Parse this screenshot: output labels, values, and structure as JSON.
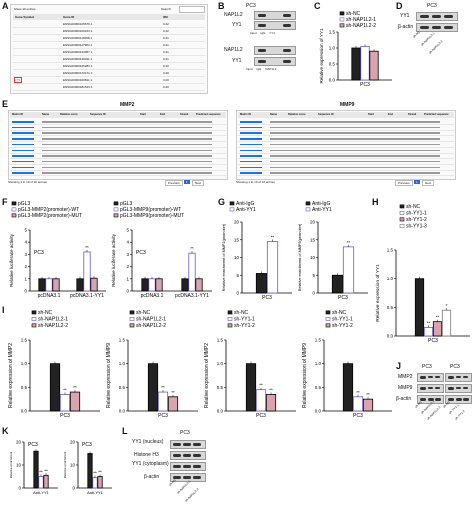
{
  "panelA": {
    "letter": "A",
    "show_text": "Show 10 entries",
    "search_label": "Search:",
    "headers": [
      "Gene Symbol",
      "Gene ID",
      "IRC"
    ],
    "rows": [
      {
        "symbol": "",
        "id": "ENSG00000105676.1",
        "irc": "0.22"
      },
      {
        "symbol": "",
        "id": "ENSG00000106153.1",
        "irc": "0.22"
      },
      {
        "symbol": "",
        "id": "ENSG00000116098.1",
        "irc": "0.21"
      },
      {
        "symbol": "",
        "id": "ENSG00000117983.1",
        "irc": "0.21"
      },
      {
        "symbol": "",
        "id": "ENSG00000134057.1",
        "irc": "0.21"
      },
      {
        "symbol": "",
        "id": "ENSG00000149311.1",
        "irc": "0.21"
      },
      {
        "symbol": "",
        "id": "ENSG00000165283.1",
        "irc": "0.20"
      },
      {
        "symbol": "",
        "id": "ENSG00000172171.1",
        "irc": "0.20"
      },
      {
        "symbol": "YY1",
        "id": "ENSG00000100811.1",
        "irc": "0.20"
      },
      {
        "symbol": "",
        "id": "ENSG00000181513.1",
        "irc": "0.20"
      }
    ],
    "highlight_color": "#e53935"
  },
  "panelB": {
    "letter": "B",
    "cell": "PC3",
    "ip1": {
      "probe": "NAP1L2",
      "blot": "YY1",
      "lanes": [
        "Input",
        "IgG",
        "YY1"
      ]
    },
    "ip2": {
      "probe": "NAP1L2",
      "blot": "YY1",
      "lanes": [
        "Input",
        "IgG",
        "NAP1L2"
      ]
    }
  },
  "panelC": {
    "letter": "C"
  },
  "panelD": {
    "letter": "D",
    "cell": "PC3",
    "rows": [
      "YY1",
      "β-actin"
    ],
    "lanes": [
      "sh-NC",
      "sh-NAP1L2-1",
      "sh-NAP1L2-2"
    ]
  },
  "panelE": {
    "letter": "E",
    "tables": [
      {
        "title": "MMP2",
        "headers": [
          "Matrix ID",
          "Name",
          "Relative score",
          "Sequence ID",
          "Start",
          "End",
          "Strand",
          "Predicted sequence"
        ],
        "footer": "Showing 1 to 10 of 10 entries"
      },
      {
        "title": "MMP9",
        "headers": [
          "Matrix ID",
          "Name",
          "Relative score",
          "Sequence ID",
          "Start",
          "End",
          "Strand",
          "Predicted sequence"
        ],
        "footer": "Showing 1 to 10 of 10 entries"
      }
    ],
    "pager": [
      "Previous",
      "1",
      "Next"
    ]
  },
  "panelF": {
    "letter": "F"
  },
  "panelG": {
    "letter": "G"
  },
  "panelH": {
    "letter": "H"
  },
  "panelI": {
    "letter": "I"
  },
  "panelJ": {
    "letter": "J",
    "cells": [
      "PC3",
      "PC3"
    ],
    "rows": [
      "MMP2",
      "MMP9",
      "β-actin"
    ],
    "lanes_left": [
      "sh-NC",
      "sh-NAP1L2-1",
      "sh-NAP1L2-2"
    ],
    "lanes_right": [
      "sh-NC",
      "sh-YY1-1",
      "sh-YY1-2"
    ]
  },
  "panelK": {
    "letter": "K"
  },
  "panelL": {
    "letter": "L",
    "cell": "PC3",
    "rows": [
      "YY1 (nucleus)",
      "Histone H3",
      "YY1 (cytoplasm)",
      "β-actin"
    ],
    "lanes": [
      "sh-NC",
      "sh-NAP1L2-1",
      "sh-NAP1L2-2"
    ]
  },
  "colors": {
    "black": "#222222",
    "purple": "#6a5acd",
    "pink": "#d9a3b0",
    "gray": "#777777"
  },
  "chart_data": [
    {
      "id": "C",
      "type": "bar",
      "categories": [
        "PC3"
      ],
      "xlabel": "PC3",
      "ylabel": "Relative expression of YY1",
      "ylim": [
        0,
        1.5
      ],
      "yticks": [
        "0.0",
        "0.5",
        "1.0",
        "1.5"
      ],
      "legend": [
        "sh-NC",
        "sh-NAP1L2-1",
        "sh-NAP1L2-2"
      ],
      "series": [
        {
          "name": "sh-NC",
          "values": [
            1.0
          ]
        },
        {
          "name": "sh-NAP1L2-1",
          "values": [
            1.05
          ]
        },
        {
          "name": "sh-NAP1L2-2",
          "values": [
            0.9
          ]
        }
      ],
      "sig": [
        "",
        "",
        ""
      ]
    },
    {
      "id": "F1",
      "type": "bar",
      "categories": [
        "pcDNA3.1",
        "pcDNA3.1-YY1"
      ],
      "xlabel": "",
      "ylabel": "Relative luciferase activity",
      "ylim": [
        0,
        5
      ],
      "yticks": [
        "0",
        "1",
        "2",
        "3",
        "4",
        "5"
      ],
      "title": "PC3",
      "legend": [
        "pGL3",
        "pGL3-MMP2(promoter)-WT",
        "pGL3-MMP2(promoter)-MUT"
      ],
      "series": [
        {
          "name": "pGL3",
          "values": [
            1.0,
            1.0
          ]
        },
        {
          "name": "pGL3-MMP2(promoter)-WT",
          "values": [
            1.0,
            3.2
          ]
        },
        {
          "name": "pGL3-MMP2(promoter)-MUT",
          "values": [
            1.0,
            1.05
          ]
        }
      ],
      "sig": [
        "",
        "**",
        ""
      ]
    },
    {
      "id": "F2",
      "type": "bar",
      "categories": [
        "pcDNA3.1",
        "pcDNA3.1-YY1"
      ],
      "xlabel": "",
      "ylabel": "Relative luciferase activity",
      "ylim": [
        0,
        5
      ],
      "yticks": [
        "0",
        "1",
        "2",
        "3",
        "4",
        "5"
      ],
      "title": "PC3",
      "legend": [
        "pGL3",
        "pGL3-MMP9(promoter)-WT",
        "pGL3-MMP9(promoter)-MUT"
      ],
      "series": [
        {
          "name": "pGL3",
          "values": [
            1.0,
            1.0
          ]
        },
        {
          "name": "pGL3-MMP9(promoter)-WT",
          "values": [
            1.0,
            3.1
          ]
        },
        {
          "name": "pGL3-MMP9(promoter)-MUT",
          "values": [
            1.0,
            1.0
          ]
        }
      ],
      "sig": [
        "",
        "**",
        ""
      ]
    },
    {
      "id": "G1",
      "type": "bar",
      "categories": [
        "PC3"
      ],
      "xlabel": "PC3",
      "ylabel": "Relative enrichment of MMP2(promoter)",
      "ylim": [
        0,
        20
      ],
      "yticks": [
        "0",
        "5",
        "10",
        "15",
        "20"
      ],
      "legend": [
        "Anti-IgG",
        "Anti-YY1"
      ],
      "series": [
        {
          "name": "Anti-IgG",
          "values": [
            5.5
          ]
        },
        {
          "name": "Anti-YY1",
          "values": [
            14.5
          ]
        }
      ],
      "sig": [
        "",
        "**"
      ]
    },
    {
      "id": "G2",
      "type": "bar",
      "categories": [
        "PC3"
      ],
      "xlabel": "PC3",
      "ylabel": "Relative enrichment of MMP9(promoter)",
      "ylim": [
        0,
        20
      ],
      "yticks": [
        "0",
        "5",
        "10",
        "15",
        "20"
      ],
      "legend": [
        "Anti-IgG",
        "Anti-YY1"
      ],
      "series": [
        {
          "name": "Anti-IgG",
          "values": [
            5.0
          ]
        },
        {
          "name": "Anti-YY1",
          "values": [
            13.0
          ]
        }
      ],
      "sig": [
        "",
        "**"
      ]
    },
    {
      "id": "H",
      "type": "bar",
      "categories": [
        "PC3"
      ],
      "xlabel": "PC3",
      "ylabel": "Relative expression of YY1",
      "ylim": [
        0,
        1.5
      ],
      "yticks": [
        "0.0",
        "0.5",
        "1.0",
        "1.5"
      ],
      "legend": [
        "sh-NC",
        "sh-YY1-1",
        "sh-YY1-2",
        "sh-YY1-3"
      ],
      "series": [
        {
          "name": "sh-NC",
          "values": [
            1.0
          ]
        },
        {
          "name": "sh-YY1-1",
          "values": [
            0.15
          ]
        },
        {
          "name": "sh-YY1-2",
          "values": [
            0.25
          ]
        },
        {
          "name": "sh-YY1-3",
          "values": [
            0.45
          ]
        }
      ],
      "sig": [
        "",
        "**",
        "**",
        "*"
      ]
    },
    {
      "id": "I1",
      "type": "bar",
      "categories": [
        "PC3"
      ],
      "xlabel": "PC3",
      "ylabel": "Relative expression of MMP2",
      "ylim": [
        0,
        1.5
      ],
      "yticks": [
        "0.0",
        "0.5",
        "1.0",
        "1.5"
      ],
      "legend": [
        "sh-NC",
        "sh-NAP1L2-1",
        "sh-NAP1L2-2"
      ],
      "series": [
        {
          "name": "sh-NC",
          "values": [
            1.0
          ]
        },
        {
          "name": "sh-NAP1L2-1",
          "values": [
            0.35
          ]
        },
        {
          "name": "sh-NAP1L2-2",
          "values": [
            0.4
          ]
        }
      ],
      "sig": [
        "",
        "**",
        "**"
      ]
    },
    {
      "id": "I2",
      "type": "bar",
      "categories": [
        "PC3"
      ],
      "xlabel": "PC3",
      "ylabel": "Relative expression of MMP9",
      "ylim": [
        0,
        1.5
      ],
      "yticks": [
        "0.0",
        "0.5",
        "1.0",
        "1.5"
      ],
      "legend": [
        "sh-NC",
        "sh-NAP1L2-1",
        "sh-NAP1L2-2"
      ],
      "series": [
        {
          "name": "sh-NC",
          "values": [
            1.0
          ]
        },
        {
          "name": "sh-NAP1L2-1",
          "values": [
            0.4
          ]
        },
        {
          "name": "sh-NAP1L2-2",
          "values": [
            0.3
          ]
        }
      ],
      "sig": [
        "",
        "**",
        "**"
      ]
    },
    {
      "id": "I3",
      "type": "bar",
      "categories": [
        "PC3"
      ],
      "xlabel": "PC3",
      "ylabel": "Relative expression of MMP2",
      "ylim": [
        0,
        1.5
      ],
      "yticks": [
        "0.0",
        "0.5",
        "1.0",
        "1.5"
      ],
      "legend": [
        "sh-NC",
        "sh-YY1-1",
        "sh-YY1-2"
      ],
      "series": [
        {
          "name": "sh-NC",
          "values": [
            1.0
          ]
        },
        {
          "name": "sh-YY1-1",
          "values": [
            0.45
          ]
        },
        {
          "name": "sh-YY1-2",
          "values": [
            0.35
          ]
        }
      ],
      "sig": [
        "",
        "**",
        "**"
      ]
    },
    {
      "id": "I4",
      "type": "bar",
      "categories": [
        "PC3"
      ],
      "xlabel": "PC3",
      "ylabel": "Relative expression of MMP9",
      "ylim": [
        0,
        1.5
      ],
      "yticks": [
        "0.0",
        "0.5",
        "1.0",
        "1.5"
      ],
      "legend": [
        "sh-NC",
        "sh-YY1-1",
        "sh-YY1-2"
      ],
      "series": [
        {
          "name": "sh-NC",
          "values": [
            1.0
          ]
        },
        {
          "name": "sh-YY1-1",
          "values": [
            0.3
          ]
        },
        {
          "name": "sh-YY1-2",
          "values": [
            0.25
          ]
        }
      ],
      "sig": [
        "",
        "**",
        "**"
      ]
    },
    {
      "id": "K1",
      "type": "bar",
      "categories": [
        "Anti-YY1"
      ],
      "xlabel": "Anti-YY1",
      "ylabel": "Relative enrichment",
      "ylim": [
        0,
        20
      ],
      "yticks": [
        "0",
        "10",
        "20"
      ],
      "title": "PC3",
      "series": [
        {
          "name": "",
          "values": [
            16
          ]
        },
        {
          "name": "",
          "values": [
            5
          ]
        },
        {
          "name": "",
          "values": [
            5.5
          ]
        }
      ],
      "sig": [
        "",
        "**",
        "**"
      ]
    },
    {
      "id": "K2",
      "type": "bar",
      "categories": [
        "Anti-YY1"
      ],
      "xlabel": "Anti-YY1",
      "ylabel": "Relative enrichment",
      "ylim": [
        0,
        20
      ],
      "yticks": [
        "0",
        "10",
        "20"
      ],
      "title": "PC3",
      "series": [
        {
          "name": "",
          "values": [
            15
          ]
        },
        {
          "name": "",
          "values": [
            4.5
          ]
        },
        {
          "name": "",
          "values": [
            5
          ]
        }
      ],
      "sig": [
        "",
        "**",
        "**"
      ]
    }
  ]
}
